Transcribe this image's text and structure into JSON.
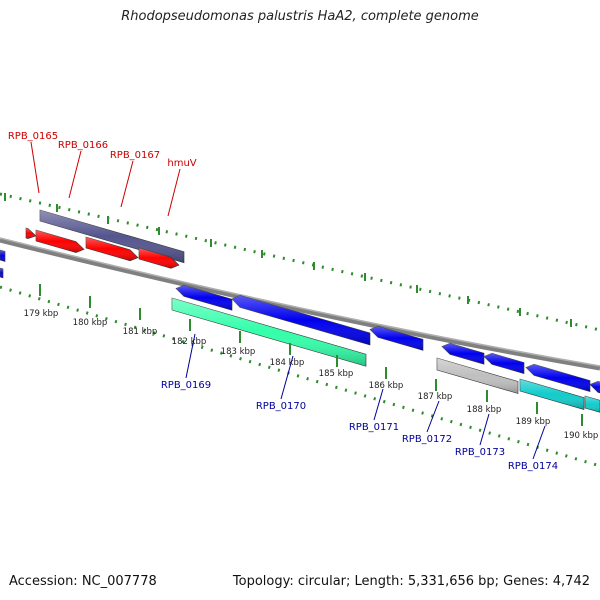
{
  "header": {
    "title": "Rhodopseudomonas palustris HaA2, complete genome"
  },
  "footer": {
    "accession": "Accession: NC_007778",
    "topology": "Topology: circular; Length: 5,331,656 bp; Genes: 4,742"
  },
  "colors": {
    "backbone": "#808080",
    "tick": "#2e8b2e",
    "forward_gene": "#ff0000",
    "reverse_gene": "#0000ee",
    "forward_feature": "#55558f",
    "reverse_feature_green": "#33ffaa",
    "reverse_feature_gray": "#bfbfbf",
    "reverse_feature_cyan": "#11cccc",
    "label_forward": "#cc0000",
    "label_reverse": "#000099"
  },
  "ruler": {
    "ticks": [
      "179 kbp",
      "180 kbp",
      "181 kbp",
      "182 kbp",
      "183 kbp",
      "184 kbp",
      "185 kbp",
      "186 kbp",
      "187 kbp",
      "188 kbp",
      "189 kbp",
      "190 kbp"
    ]
  },
  "gene_labels": {
    "forward": [
      "RPB_0165",
      "RPB_0166",
      "RPB_0167",
      "hmuV"
    ],
    "reverse": [
      "RPB_0169",
      "RPB_0170",
      "RPB_0171",
      "RPB_0172",
      "RPB_0173",
      "RPB_0174"
    ]
  }
}
